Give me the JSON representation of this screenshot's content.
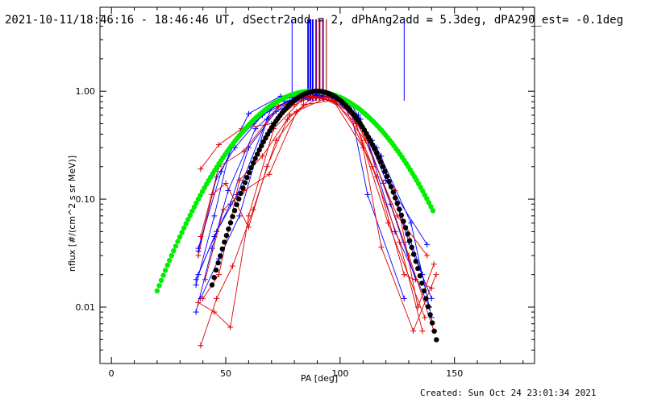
{
  "header": {
    "title": "2021-10-11/18:46:16 - 18:46:46 UT, dSectr2add = 2, dPhAng2add = 5.3deg, dPA290_est= -0.1deg",
    "footer": "Created: Sun Oct 24 23:01:34 2021"
  },
  "chart_data": {
    "type": "scatter",
    "title": "2021-10-11/18:46:16 - 18:46:46 UT, dSectr2add = 2, dPhAng2add = 5.3deg, dPA290_est= -0.1deg",
    "xlabel": "PA [deg]",
    "ylabel": "nflux [#/(cm^2 s sr MeV)]",
    "xlim": [
      -5,
      185
    ],
    "ylim": [
      0.003,
      6
    ],
    "yscale": "log",
    "xticks": [
      0,
      50,
      100,
      150
    ],
    "xtick_labels": [
      "0",
      "50",
      "100",
      "150"
    ],
    "yticks": [
      0.01,
      0.1,
      1.0
    ],
    "ytick_labels": [
      "0.01",
      "0.10",
      "1.00"
    ],
    "colors": {
      "blue": "#0000ff",
      "red": "#e00000",
      "green": "#00ee00",
      "black": "#000000",
      "purple": "#800080",
      "darkred": "#8b0000"
    },
    "vertical_markers": [
      {
        "x": 79,
        "color": "#0000ff",
        "width": 1
      },
      {
        "x": 86,
        "color": "#0000ff",
        "width": 2
      },
      {
        "x": 87,
        "color": "#0000ff",
        "width": 2
      },
      {
        "x": 88,
        "color": "#0000ff",
        "width": 2
      },
      {
        "x": 89.5,
        "color": "#800080",
        "width": 2
      },
      {
        "x": 91,
        "color": "#8b0000",
        "width": 2
      },
      {
        "x": 92.5,
        "color": "#800080",
        "width": 2
      },
      {
        "x": 94,
        "color": "#8b0000",
        "width": 1
      },
      {
        "x": 128,
        "color": "#0000ff",
        "width": 1
      }
    ],
    "model_curves": [
      {
        "color": "#00ee00",
        "x0": 88,
        "sigma": 23.3,
        "xmin": 20,
        "xmax": 141
      },
      {
        "color": "#000000",
        "x0": 90,
        "sigma": 16.0,
        "xmin": 44,
        "xmax": 143
      }
    ],
    "series": [
      {
        "color": "#0000ff",
        "points": [
          [
            37,
            0.016
          ],
          [
            45,
            0.07
          ],
          [
            52,
            0.3
          ],
          [
            62,
            0.5
          ],
          [
            75,
            0.85
          ],
          [
            85,
            0.9
          ],
          [
            94,
            0.92
          ],
          [
            105,
            0.75
          ],
          [
            118,
            0.25
          ],
          [
            130,
            0.04
          ],
          [
            140,
            0.012
          ]
        ]
      },
      {
        "color": "#0000ff",
        "points": [
          [
            38,
            0.033
          ],
          [
            46,
            0.16
          ],
          [
            54,
            0.3
          ],
          [
            66,
            0.6
          ],
          [
            78,
            0.82
          ],
          [
            88,
            0.9
          ],
          [
            98,
            0.85
          ],
          [
            110,
            0.45
          ],
          [
            122,
            0.09
          ],
          [
            133,
            0.018
          ]
        ]
      },
      {
        "color": "#0000ff",
        "points": [
          [
            38,
            0.02
          ],
          [
            45,
            0.045
          ],
          [
            52,
            0.09
          ],
          [
            60,
            0.3
          ],
          [
            72,
            0.65
          ],
          [
            84,
            0.85
          ],
          [
            96,
            0.88
          ],
          [
            108,
            0.6
          ],
          [
            120,
            0.15
          ],
          [
            138,
            0.038
          ]
        ]
      },
      {
        "color": "#0000ff",
        "points": [
          [
            37,
            0.009
          ],
          [
            44,
            0.035
          ],
          [
            51,
            0.12
          ],
          [
            63,
            0.45
          ],
          [
            76,
            0.8
          ],
          [
            90,
            0.93
          ],
          [
            102,
            0.82
          ],
          [
            114,
            0.35
          ],
          [
            126,
            0.08
          ],
          [
            136,
            0.02
          ]
        ]
      },
      {
        "color": "#0000ff",
        "points": [
          [
            39,
            0.012
          ],
          [
            47,
            0.028
          ],
          [
            56,
            0.07
          ],
          [
            68,
            0.55
          ],
          [
            80,
            0.88
          ],
          [
            92,
            0.9
          ],
          [
            104,
            0.78
          ],
          [
            112,
            0.11
          ],
          [
            128,
            0.012
          ]
        ]
      },
      {
        "color": "#0000ff",
        "points": [
          [
            38,
            0.035
          ],
          [
            48,
            0.18
          ],
          [
            60,
            0.62
          ],
          [
            74,
            0.9
          ],
          [
            86,
            0.95
          ],
          [
            99,
            0.86
          ],
          [
            116,
            0.3
          ],
          [
            131,
            0.06
          ],
          [
            140,
            0.008
          ]
        ]
      },
      {
        "color": "#0000ff",
        "points": [
          [
            37,
            0.018
          ],
          [
            46,
            0.05
          ],
          [
            55,
            0.11
          ],
          [
            70,
            0.7
          ],
          [
            82,
            0.87
          ],
          [
            95,
            0.88
          ],
          [
            109,
            0.55
          ],
          [
            124,
            0.05
          ],
          [
            139,
            0.01
          ]
        ]
      },
      {
        "color": "#e00000",
        "points": [
          [
            39,
            0.19
          ],
          [
            47,
            0.32
          ],
          [
            57,
            0.45
          ],
          [
            70,
            0.5
          ],
          [
            80,
            0.75
          ],
          [
            88,
            0.9
          ],
          [
            100,
            0.85
          ],
          [
            112,
            0.35
          ],
          [
            124,
            0.12
          ],
          [
            134,
            0.01
          ],
          [
            141,
            0.025
          ]
        ]
      },
      {
        "color": "#e00000",
        "points": [
          [
            38,
            0.03
          ],
          [
            44,
            0.11
          ],
          [
            50,
            0.14
          ],
          [
            60,
            0.055
          ],
          [
            68,
            0.2
          ],
          [
            77,
            0.55
          ],
          [
            88,
            0.88
          ],
          [
            101,
            0.8
          ],
          [
            114,
            0.2
          ],
          [
            126,
            0.04
          ],
          [
            136,
            0.006
          ]
        ]
      },
      {
        "color": "#e00000",
        "points": [
          [
            39,
            0.0044
          ],
          [
            46,
            0.012
          ],
          [
            53,
            0.024
          ],
          [
            62,
            0.08
          ],
          [
            72,
            0.35
          ],
          [
            84,
            0.75
          ],
          [
            97,
            0.82
          ],
          [
            110,
            0.3
          ],
          [
            118,
            0.036
          ],
          [
            132,
            0.006
          ],
          [
            142,
            0.02
          ]
        ]
      },
      {
        "color": "#e00000",
        "points": [
          [
            40,
            0.012
          ],
          [
            47,
            0.02
          ],
          [
            56,
            0.15
          ],
          [
            66,
            0.25
          ],
          [
            78,
            0.6
          ],
          [
            91,
            0.88
          ],
          [
            104,
            0.7
          ],
          [
            116,
            0.16
          ],
          [
            128,
            0.02
          ],
          [
            140,
            0.015
          ]
        ]
      },
      {
        "color": "#e00000",
        "points": [
          [
            38,
            0.011
          ],
          [
            45,
            0.009
          ],
          [
            52,
            0.0065
          ],
          [
            60,
            0.07
          ],
          [
            71,
            0.45
          ],
          [
            83,
            0.82
          ],
          [
            95,
            0.9
          ],
          [
            107,
            0.5
          ],
          [
            121,
            0.06
          ],
          [
            137,
            0.008
          ]
        ]
      },
      {
        "color": "#e00000",
        "points": [
          [
            41,
            0.018
          ],
          [
            49,
            0.08
          ],
          [
            58,
            0.12
          ],
          [
            69,
            0.17
          ],
          [
            81,
            0.65
          ],
          [
            93,
            0.85
          ],
          [
            106,
            0.62
          ],
          [
            119,
            0.14
          ],
          [
            130,
            0.03
          ],
          [
            141,
            0.006
          ]
        ]
      },
      {
        "color": "#e00000",
        "points": [
          [
            39,
            0.045
          ],
          [
            47,
            0.2
          ],
          [
            58,
            0.28
          ],
          [
            73,
            0.72
          ],
          [
            86,
            0.9
          ],
          [
            98,
            0.8
          ],
          [
            111,
            0.35
          ],
          [
            125,
            0.07
          ],
          [
            138,
            0.03
          ]
        ]
      }
    ]
  }
}
